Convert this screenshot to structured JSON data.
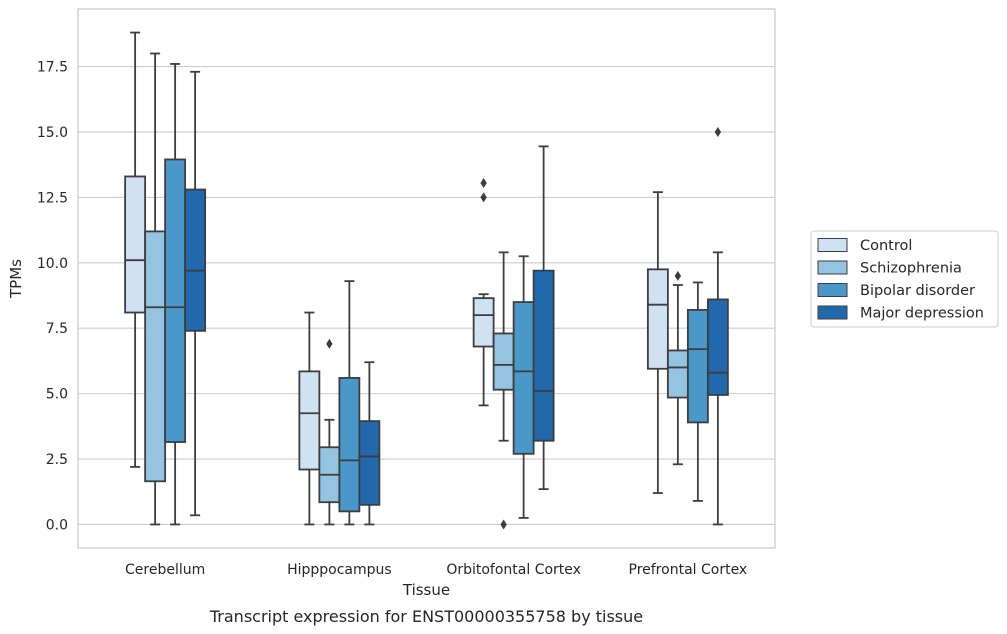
{
  "caption": "Transcript expression for ENST00000355758 by tissue",
  "chart_data": {
    "type": "box",
    "title": "",
    "xlabel": "Tissue",
    "ylabel": "TPMs",
    "ylim": [
      -0.9,
      19.7
    ],
    "yticks": [
      0.0,
      2.5,
      5.0,
      7.5,
      10.0,
      12.5,
      15.0,
      17.5
    ],
    "ytick_labels": [
      "0.0",
      "2.5",
      "5.0",
      "7.5",
      "10.0",
      "12.5",
      "15.0",
      "17.5"
    ],
    "grid": "horizontal",
    "legend_position": "right",
    "categories": [
      "Cerebellum",
      "Hipppocampus",
      "Orbitofontal Cortex",
      "Prefrontal Cortex"
    ],
    "series": [
      {
        "name": "Control",
        "color": "#d0e1f2",
        "boxes": [
          {
            "whislo": 2.2,
            "q1": 8.1,
            "med": 10.1,
            "q3": 13.3,
            "whishi": 18.8,
            "fliers": []
          },
          {
            "whislo": 0.0,
            "q1": 2.1,
            "med": 4.25,
            "q3": 5.85,
            "whishi": 8.1,
            "fliers": []
          },
          {
            "whislo": 4.55,
            "q1": 6.8,
            "med": 8.0,
            "q3": 8.65,
            "whishi": 8.8,
            "fliers": [
              12.5,
              13.05
            ]
          },
          {
            "whislo": 1.2,
            "q1": 5.95,
            "med": 8.4,
            "q3": 9.75,
            "whishi": 12.7,
            "fliers": []
          }
        ]
      },
      {
        "name": "Schizophrenia",
        "color": "#94c4df",
        "boxes": [
          {
            "whislo": 0.0,
            "q1": 1.65,
            "med": 8.3,
            "q3": 11.2,
            "whishi": 18.0,
            "fliers": []
          },
          {
            "whislo": 0.0,
            "q1": 0.85,
            "med": 1.9,
            "q3": 2.95,
            "whishi": 4.0,
            "fliers": [
              6.9
            ]
          },
          {
            "whislo": 3.2,
            "q1": 5.15,
            "med": 6.1,
            "q3": 7.3,
            "whishi": 10.4,
            "fliers": [
              0.0
            ]
          },
          {
            "whislo": 2.3,
            "q1": 4.85,
            "med": 6.0,
            "q3": 6.65,
            "whishi": 9.15,
            "fliers": [
              9.5
            ]
          }
        ]
      },
      {
        "name": "Bipolar disorder",
        "color": "#4a98c9",
        "boxes": [
          {
            "whislo": 0.0,
            "q1": 3.15,
            "med": 8.3,
            "q3": 13.95,
            "whishi": 17.6,
            "fliers": []
          },
          {
            "whislo": 0.0,
            "q1": 0.5,
            "med": 2.45,
            "q3": 5.6,
            "whishi": 9.3,
            "fliers": []
          },
          {
            "whislo": 0.25,
            "q1": 2.7,
            "med": 5.85,
            "q3": 8.5,
            "whishi": 10.25,
            "fliers": []
          },
          {
            "whislo": 0.9,
            "q1": 3.9,
            "med": 6.7,
            "q3": 8.2,
            "whishi": 9.25,
            "fliers": []
          }
        ]
      },
      {
        "name": "Major depression",
        "color": "#2268ad",
        "boxes": [
          {
            "whislo": 0.35,
            "q1": 7.4,
            "med": 9.7,
            "q3": 12.8,
            "whishi": 17.3,
            "fliers": []
          },
          {
            "whislo": 0.0,
            "q1": 0.75,
            "med": 2.6,
            "q3": 3.95,
            "whishi": 6.2,
            "fliers": []
          },
          {
            "whislo": 1.35,
            "q1": 3.2,
            "med": 5.1,
            "q3": 9.7,
            "whishi": 14.45,
            "fliers": []
          },
          {
            "whislo": 0.0,
            "q1": 4.95,
            "med": 5.8,
            "q3": 8.6,
            "whishi": 10.4,
            "fliers": [
              15.0
            ]
          }
        ]
      }
    ]
  }
}
